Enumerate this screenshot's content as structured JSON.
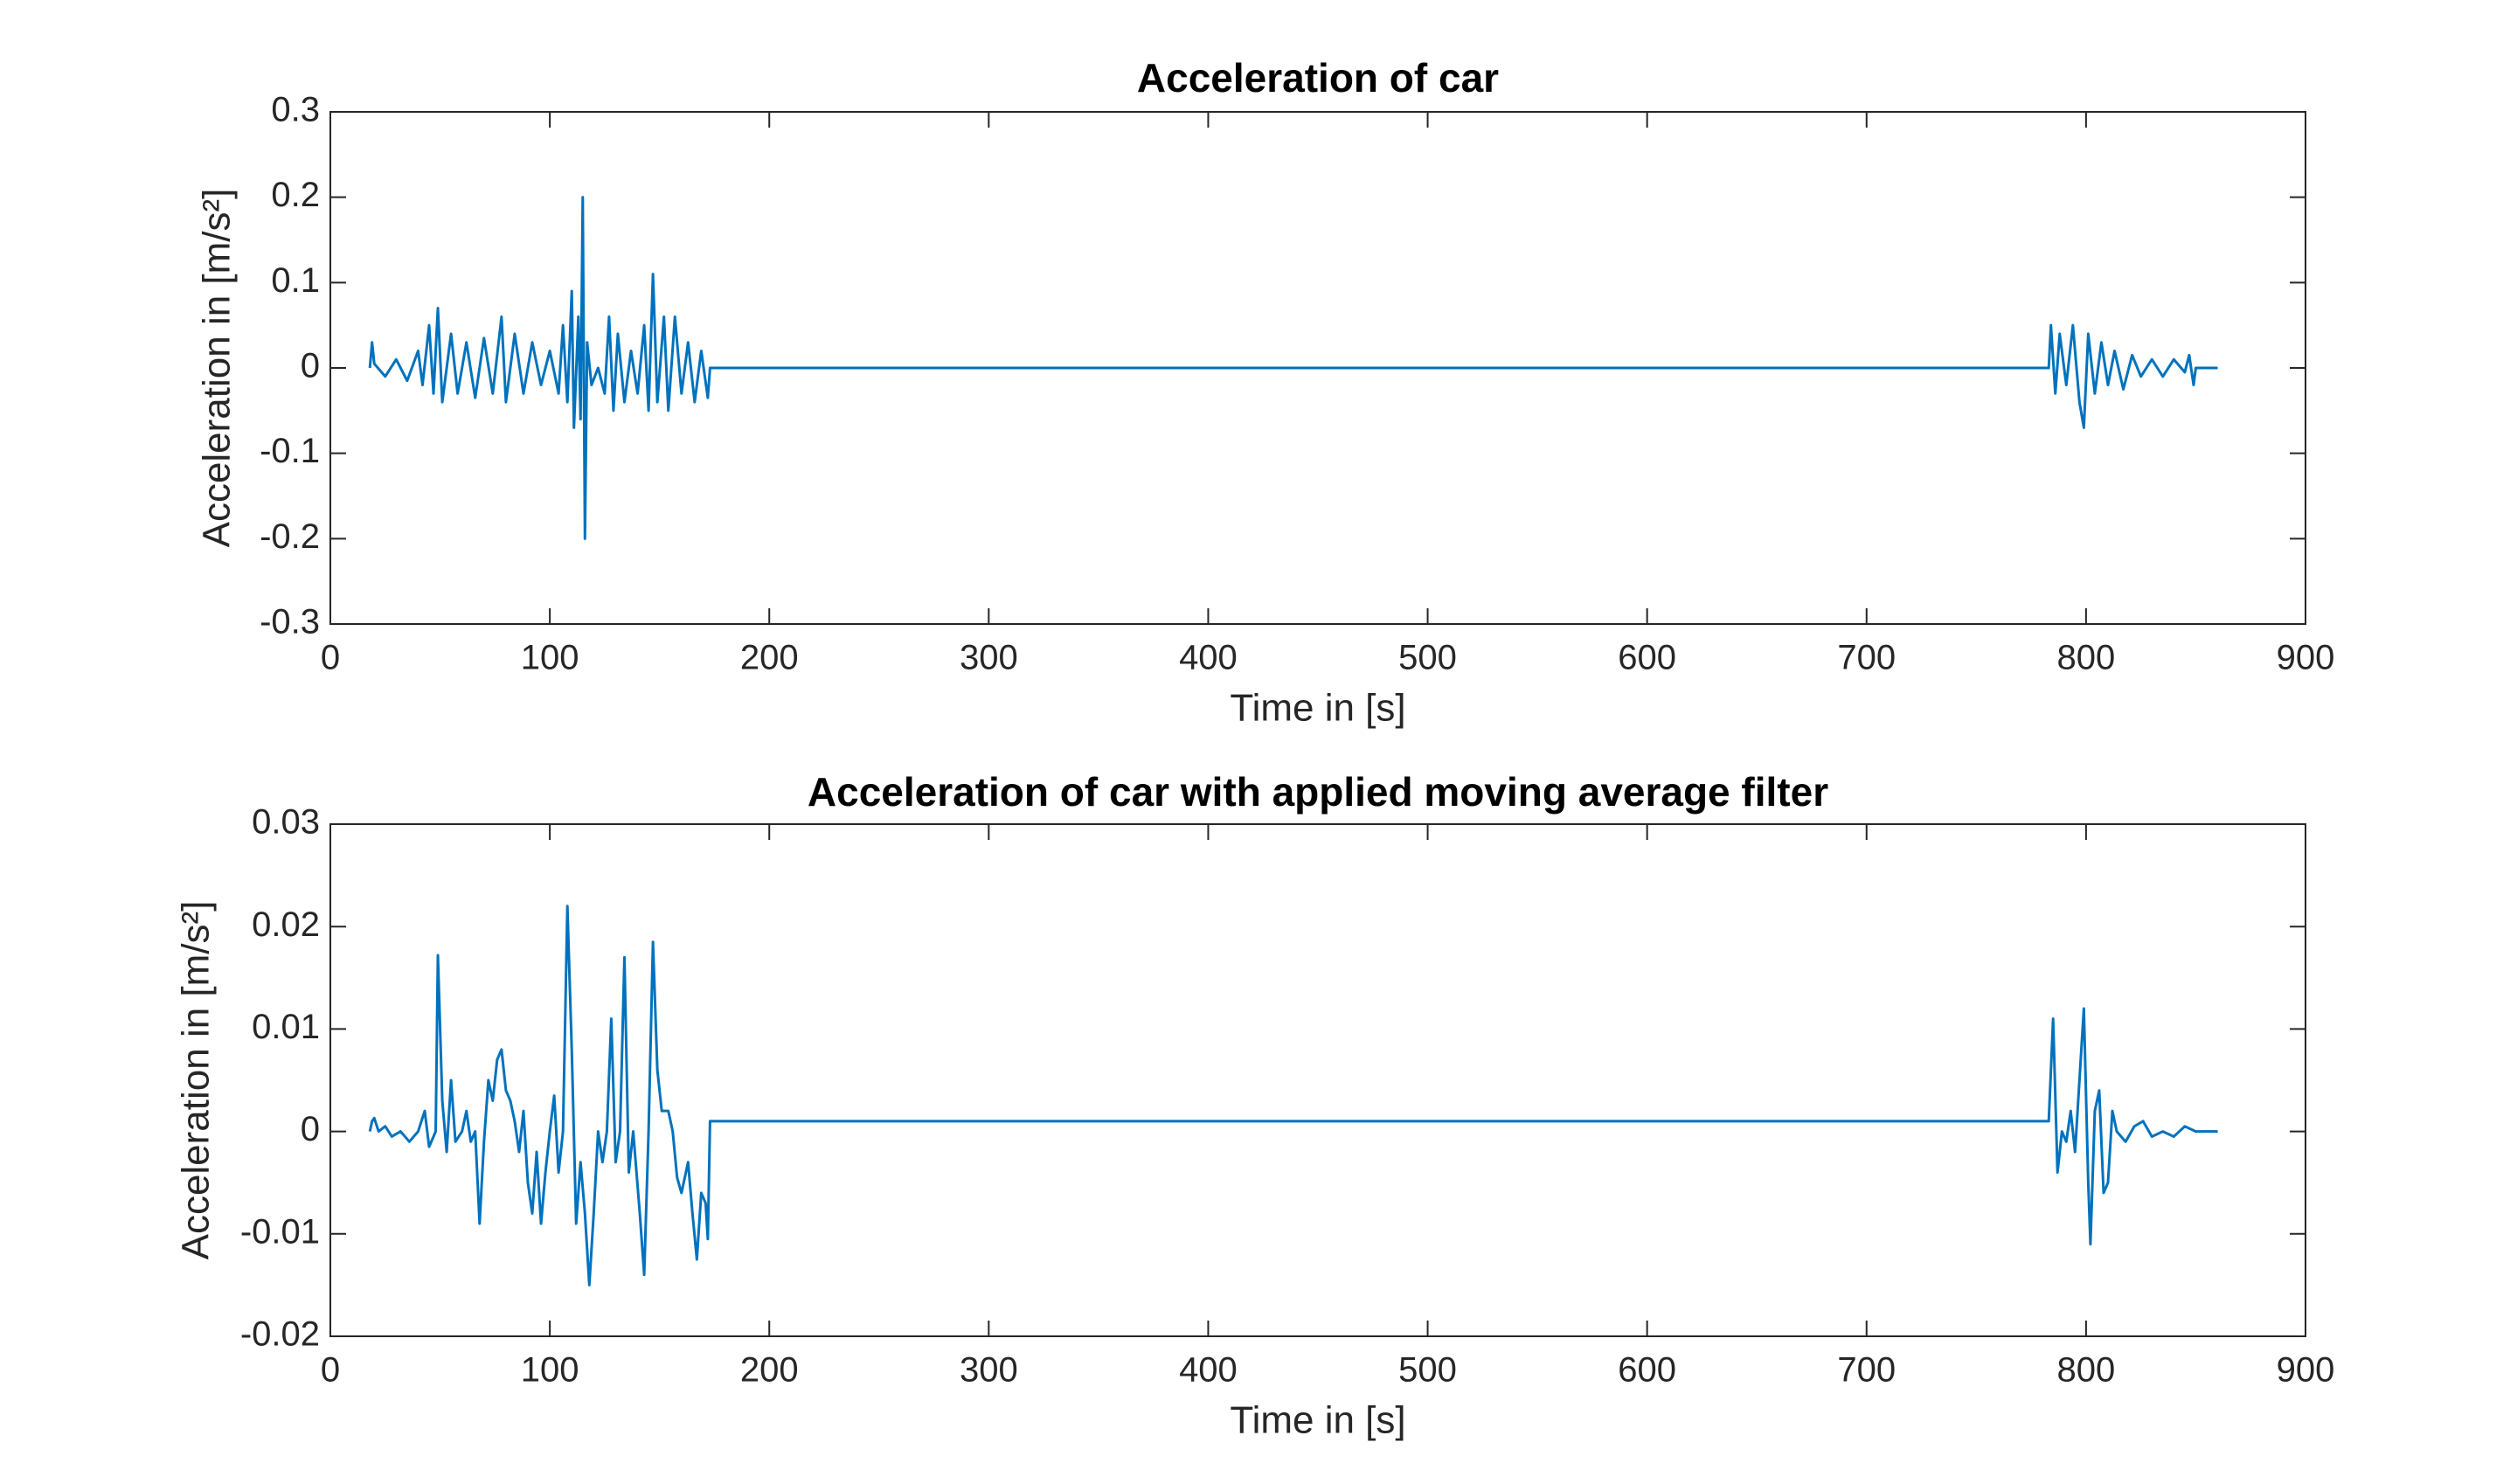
{
  "chart_data": [
    {
      "type": "line",
      "title": "Acceleration of car",
      "xlabel": "Time in [s]",
      "ylabel": "Acceleration in [m/s²]",
      "xlim": [
        0,
        900
      ],
      "xticks": [
        0,
        100,
        200,
        300,
        400,
        500,
        600,
        700,
        800,
        900
      ],
      "ylim": [
        -0.3,
        0.3
      ],
      "yticks": [
        -0.3,
        -0.2,
        -0.1,
        0,
        0.1,
        0.2,
        0.3
      ],
      "grid": false,
      "color": "#0072bd",
      "x": [
        18,
        19,
        20,
        25,
        30,
        35,
        40,
        42,
        45,
        47,
        49,
        51,
        55,
        58,
        62,
        66,
        70,
        74,
        78,
        80,
        84,
        88,
        92,
        96,
        100,
        104,
        106,
        108,
        110,
        111,
        113,
        114,
        115,
        116,
        117,
        119,
        122,
        125,
        127,
        129,
        131,
        134,
        137,
        140,
        143,
        145,
        147,
        149,
        152,
        154,
        157,
        160,
        163,
        166,
        169,
        172,
        173,
        783,
        784,
        786,
        788,
        791,
        794,
        797,
        799,
        801,
        804,
        807,
        810,
        813,
        817,
        821,
        825,
        830,
        835,
        840,
        845,
        847,
        849,
        850,
        860
      ],
      "values": [
        0,
        0.03,
        0.005,
        -0.01,
        0.01,
        -0.015,
        0.02,
        -0.02,
        0.05,
        -0.03,
        0.07,
        -0.04,
        0.04,
        -0.03,
        0.03,
        -0.035,
        0.035,
        -0.03,
        0.06,
        -0.04,
        0.04,
        -0.03,
        0.03,
        -0.02,
        0.02,
        -0.03,
        0.05,
        -0.04,
        0.09,
        -0.07,
        0.06,
        -0.06,
        0.2,
        -0.2,
        0.03,
        -0.02,
        0,
        -0.03,
        0.06,
        -0.05,
        0.04,
        -0.04,
        0.02,
        -0.03,
        0.05,
        -0.05,
        0.11,
        -0.04,
        0.06,
        -0.05,
        0.06,
        -0.03,
        0.03,
        -0.04,
        0.02,
        -0.035,
        0,
        0,
        0.05,
        -0.03,
        0.04,
        -0.02,
        0.05,
        -0.04,
        -0.07,
        0.04,
        -0.03,
        0.03,
        -0.02,
        0.02,
        -0.025,
        0.015,
        -0.01,
        0.01,
        -0.01,
        0.01,
        -0.005,
        0.015,
        -0.02,
        0,
        0
      ]
    },
    {
      "type": "line",
      "title": "Acceleration of car with applied moving average filter",
      "xlabel": "Time in [s]",
      "ylabel": "Acceleration in [m/s²]",
      "xlim": [
        0,
        900
      ],
      "xticks": [
        0,
        100,
        200,
        300,
        400,
        500,
        600,
        700,
        800,
        900
      ],
      "ylim": [
        -0.02,
        0.03
      ],
      "yticks": [
        -0.02,
        -0.01,
        0,
        0.01,
        0.02,
        0.03
      ],
      "grid": false,
      "color": "#0072bd",
      "x": [
        18,
        19,
        20,
        22,
        25,
        28,
        32,
        36,
        40,
        43,
        45,
        48,
        49,
        51,
        53,
        55,
        57,
        60,
        62,
        64,
        66,
        68,
        70,
        72,
        74,
        76,
        78,
        80,
        82,
        84,
        86,
        88,
        90,
        92,
        94,
        96,
        98,
        100,
        102,
        104,
        106,
        108,
        110,
        112,
        114,
        116,
        118,
        120,
        122,
        124,
        126,
        128,
        130,
        132,
        134,
        136,
        138,
        141,
        143,
        145,
        147,
        149,
        151,
        154,
        156,
        158,
        160,
        163,
        165,
        167,
        169,
        171,
        172,
        173,
        783,
        785,
        787,
        789,
        791,
        793,
        795,
        797,
        799,
        801,
        802,
        804,
        806,
        808,
        810,
        812,
        814,
        818,
        822,
        826,
        830,
        835,
        840,
        845,
        850,
        860
      ],
      "values": [
        0,
        0.001,
        0.0013,
        0,
        0.0005,
        -0.0005,
        0,
        -0.001,
        0,
        0.002,
        -0.0015,
        0,
        0.0172,
        0.003,
        -0.002,
        0.005,
        -0.001,
        0,
        0.002,
        -0.001,
        0,
        -0.009,
        -0.001,
        0.005,
        0.003,
        0.007,
        0.008,
        0.004,
        0.003,
        0.001,
        -0.002,
        0.002,
        -0.005,
        -0.008,
        -0.002,
        -0.009,
        -0.004,
        0,
        0.0035,
        -0.004,
        0,
        0.022,
        0.008,
        -0.009,
        -0.003,
        -0.008,
        -0.015,
        -0.008,
        0,
        -0.003,
        0,
        0.011,
        -0.003,
        0,
        0.017,
        -0.004,
        0,
        -0.008,
        -0.014,
        0,
        0.0185,
        0.006,
        0.002,
        0.002,
        0,
        -0.0045,
        -0.006,
        -0.003,
        -0.008,
        -0.0125,
        -0.006,
        -0.007,
        -0.0105,
        0.001,
        0.001,
        0.011,
        -0.004,
        0,
        -0.001,
        0.002,
        -0.002,
        0.005,
        0.012,
        -0.005,
        -0.011,
        0.002,
        0.004,
        -0.006,
        -0.005,
        0.002,
        0,
        -0.001,
        0.0005,
        0.001,
        -0.0005,
        0,
        -0.0005,
        0.0005,
        0,
        0
      ]
    }
  ]
}
